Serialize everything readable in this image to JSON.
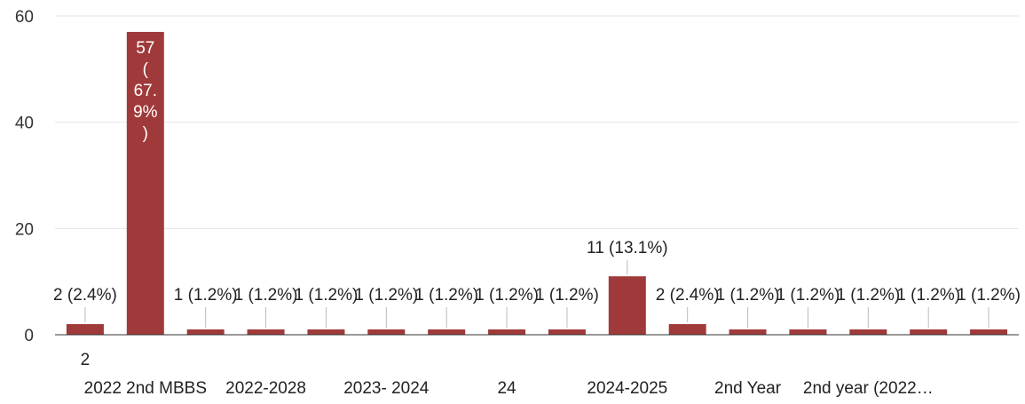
{
  "chart_data": {
    "type": "bar",
    "categories": [
      "2",
      "2022 2nd MBBS",
      "",
      "2022-2028",
      "",
      "2023- 2024",
      "",
      "24",
      "",
      "2024-2025",
      "",
      "2nd Year",
      "",
      "2nd year (2022…",
      "",
      ""
    ],
    "values": [
      2,
      57,
      1,
      1,
      1,
      1,
      1,
      1,
      1,
      11,
      2,
      1,
      1,
      1,
      1,
      1
    ],
    "data_labels": [
      "2 (2.4%)",
      "57 (67.9%)",
      "1 (1.2%)",
      "1 (1.2%)",
      "1 (1.2%)",
      "1 (1.2%)",
      "1 (1.2%)",
      "1 (1.2%)",
      "1 (1.2%)",
      "11 (13.1%)",
      "2 (2.4%)",
      "1 (1.2%)",
      "1 (1.2%)",
      "1 (1.2%)",
      "1 (1.2%)",
      "1 (1.2%)"
    ],
    "y_ticks": [
      "0",
      "20",
      "40",
      "60"
    ],
    "ylim": [
      0,
      60
    ],
    "grid": true,
    "colors": {
      "bar": "#a03a3a",
      "grid": "#e6e6e6",
      "axis": "#333333"
    }
  }
}
